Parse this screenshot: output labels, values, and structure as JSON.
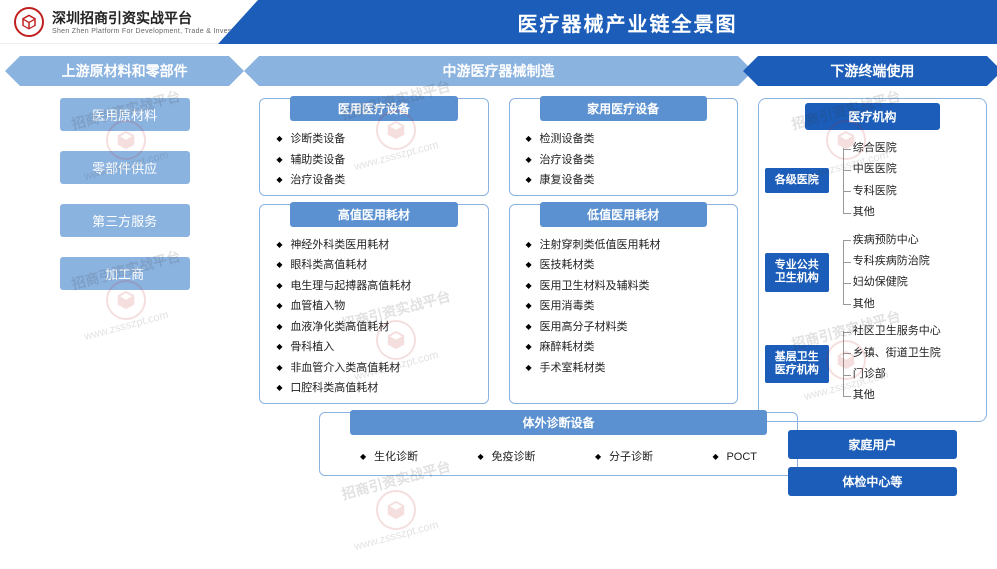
{
  "header": {
    "platform_name": "深圳招商引资实战平台",
    "platform_sub": "Shen Zhen Platform For Development, Trade & Investment",
    "title": "医疗器械产业链全景图"
  },
  "colors": {
    "primary": "#1b5db8",
    "light": "#8bb3e0",
    "mid": "#5c91d1",
    "logo": "#c02020",
    "text": "#222222",
    "bg": "#ffffff"
  },
  "upstream": {
    "header": "上游原材料和零部件",
    "items": [
      "医用原材料",
      "零部件供应",
      "第三方服务",
      "加工商"
    ]
  },
  "midstream": {
    "header": "中游医疗器械制造",
    "cards": [
      {
        "title": "医用医疗设备",
        "items": [
          "诊断类设备",
          "辅助类设备",
          "治疗设备类"
        ]
      },
      {
        "title": "家用医疗设备",
        "items": [
          "检测设备类",
          "治疗设备类",
          "康复设备类"
        ]
      },
      {
        "title": "高值医用耗材",
        "items": [
          "神经外科类医用耗材",
          "眼科类高值耗材",
          "电生理与起搏器高值耗材",
          "血管植入物",
          "血液净化类高值耗材",
          "骨科植入",
          "非血管介入类高值耗材",
          "口腔科类高值耗材"
        ]
      },
      {
        "title": "低值医用耗材",
        "items": [
          "注射穿刺类低值医用耗材",
          "医技耗材类",
          "医用卫生材料及辅料类",
          "医用消毒类",
          "医用高分子材料类",
          "麻醉耗材类",
          "手术室耗材类"
        ]
      }
    ],
    "bottom_card": {
      "title": "体外诊断设备",
      "items": [
        "生化诊断",
        "免疫诊断",
        "分子诊断",
        "POCT"
      ]
    }
  },
  "downstream": {
    "header": "下游终端使用",
    "top_label": "医疗机构",
    "groups": [
      {
        "label": "各级医院",
        "items": [
          "综合医院",
          "中医医院",
          "专科医院",
          "其他"
        ]
      },
      {
        "label": "专业公共卫生机构",
        "items": [
          "疾病预防中心",
          "专科疾病防治院",
          "妇幼保健院",
          "其他"
        ]
      },
      {
        "label": "基层卫生医疗机构",
        "items": [
          "社区卫生服务中心",
          "乡镇、街道卫生院",
          "门诊部",
          "其他"
        ]
      }
    ],
    "extras": [
      "家庭用户",
      "体检中心等"
    ]
  },
  "watermark": {
    "text": "招商引资实战平台",
    "url": "www.zssszpt.com"
  }
}
